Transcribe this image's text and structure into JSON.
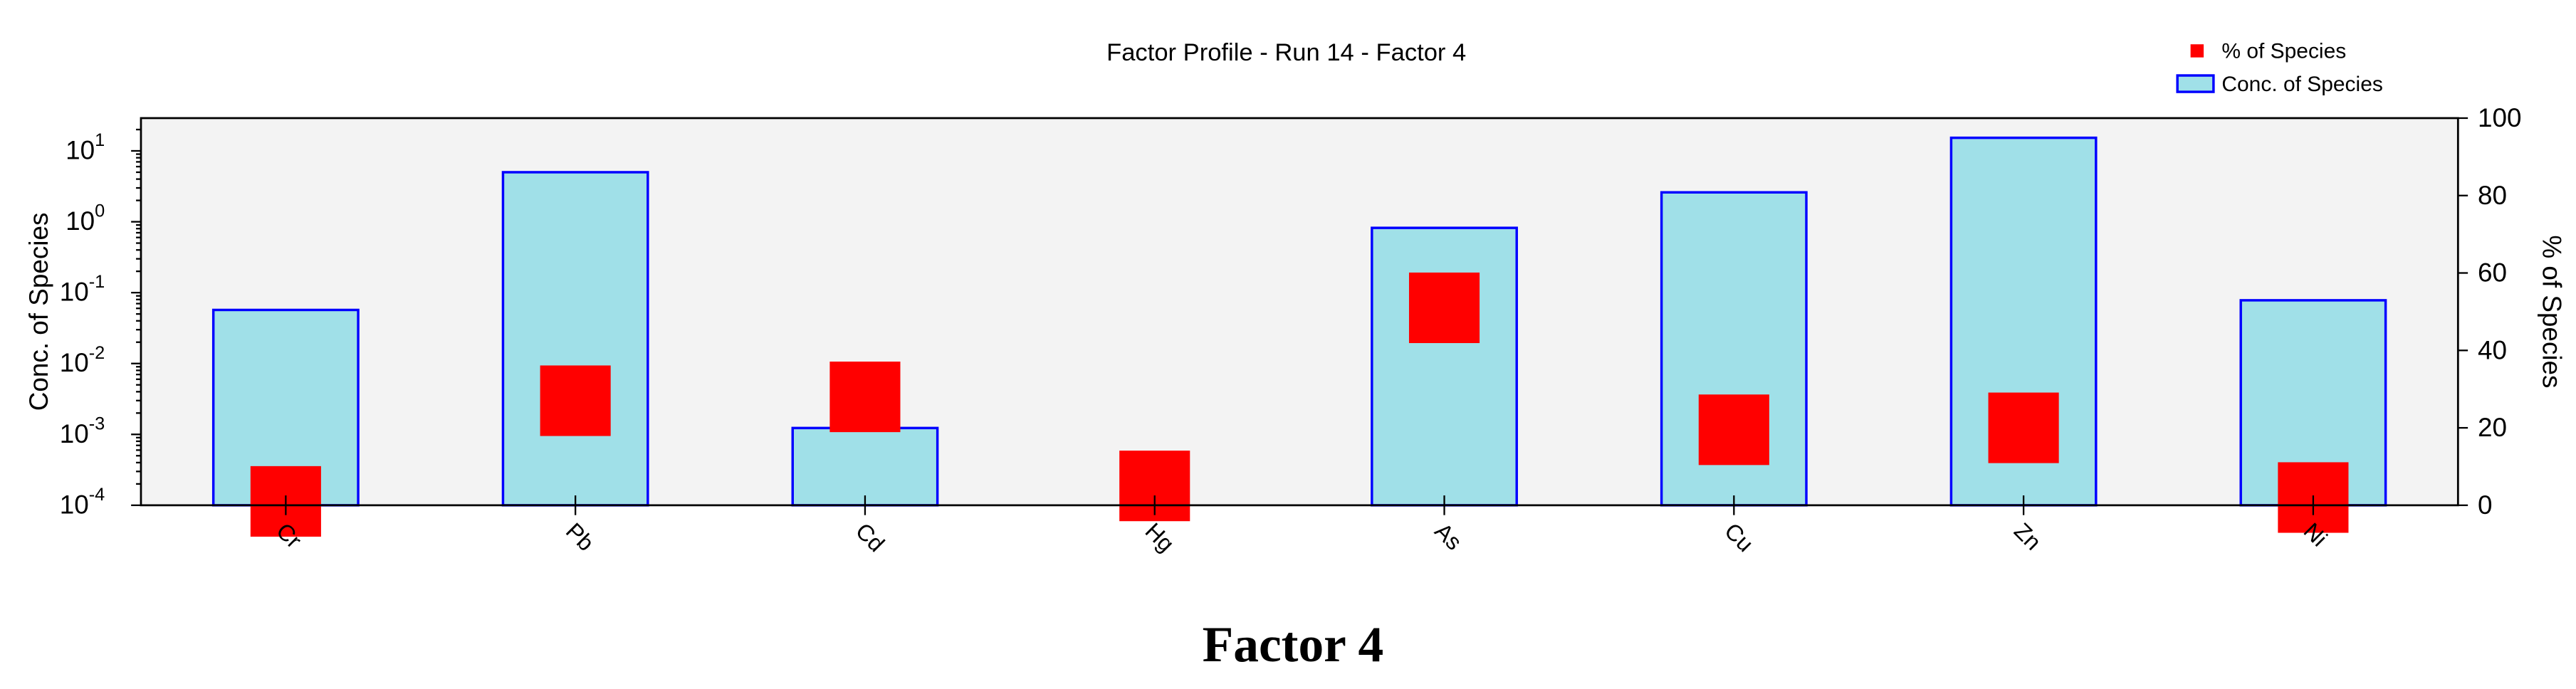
{
  "chart_data": {
    "type": "bar",
    "title": "Factor Profile - Run 14 - Factor 4",
    "caption": "Factor 4",
    "y_label": "Conc. of Species",
    "y2_label": "% of Species",
    "log_scale": true,
    "legend": "top-right",
    "categories": [
      "Cr",
      "Pb",
      "Cd",
      "Hg",
      "As",
      "Cu",
      "Zn",
      "Ni"
    ],
    "series": [
      {
        "name": "% of Species",
        "type": "square",
        "color": "#ff0000",
        "axis": "y2",
        "values": [
          1,
          27,
          28,
          5,
          51,
          19.5,
          20,
          2
        ]
      },
      {
        "name": "Conc. of Species",
        "type": "bar",
        "color": "#a0e0e8",
        "edge_color": "#0000ff",
        "values": [
          0.057,
          5.0,
          0.00123,
          null,
          0.82,
          2.6,
          15.3,
          0.078
        ]
      }
    ],
    "ylim": [
      0.0001,
      29
    ],
    "yticks": [
      {
        "value": 0.0001,
        "label": "10",
        "exponent": "-4"
      },
      {
        "value": 0.001,
        "label": "10",
        "exponent": "-3"
      },
      {
        "value": 0.01,
        "label": "10",
        "exponent": "-2"
      },
      {
        "value": 0.1,
        "label": "10",
        "exponent": "-1"
      },
      {
        "value": 1,
        "label": "10",
        "exponent": "0"
      },
      {
        "value": 10,
        "label": "10",
        "exponent": "1"
      }
    ],
    "y2lim": [
      0,
      100
    ],
    "y2ticks": [
      0,
      20,
      40,
      60,
      80,
      100
    ]
  }
}
